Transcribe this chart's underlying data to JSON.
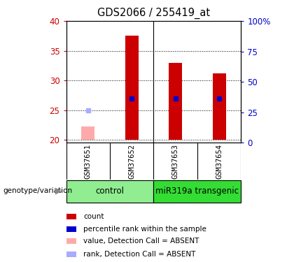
{
  "title": "GDS2066 / 255419_at",
  "samples": [
    "GSM37651",
    "GSM37652",
    "GSM37653",
    "GSM37654"
  ],
  "ylim_left": [
    19.5,
    40
  ],
  "ylim_right": [
    0,
    100
  ],
  "yticks_left": [
    20,
    25,
    30,
    35,
    40
  ],
  "yticks_right": [
    0,
    25,
    50,
    75,
    100
  ],
  "yticklabels_right": [
    "0",
    "25",
    "50",
    "75",
    "100%"
  ],
  "bar_bottom": 20,
  "bars": [
    {
      "x": 0,
      "value": 22.3,
      "rank": 25.0,
      "absent": true
    },
    {
      "x": 1,
      "value": 37.5,
      "rank": 27.0,
      "absent": false
    },
    {
      "x": 2,
      "value": 33.0,
      "rank": 27.0,
      "absent": false
    },
    {
      "x": 3,
      "value": 31.2,
      "rank": 27.0,
      "absent": false
    }
  ],
  "bar_color_present": "#cc0000",
  "bar_color_absent": "#ffaaaa",
  "rank_color_present": "#0000cc",
  "rank_color_absent": "#aaaaff",
  "bar_width": 0.3,
  "rank_marker_size": 5,
  "left_label_color": "#cc0000",
  "right_label_color": "#0000cc",
  "sample_area_color": "#cccccc",
  "group_color_control": "#90ee90",
  "group_color_transgenic": "#33dd33",
  "legend_items": [
    {
      "color": "#cc0000",
      "label": "count"
    },
    {
      "color": "#0000cc",
      "label": "percentile rank within the sample"
    },
    {
      "color": "#ffaaaa",
      "label": "value, Detection Call = ABSENT"
    },
    {
      "color": "#aaaaff",
      "label": "rank, Detection Call = ABSENT"
    }
  ],
  "genotype_label": "genotype/variation"
}
